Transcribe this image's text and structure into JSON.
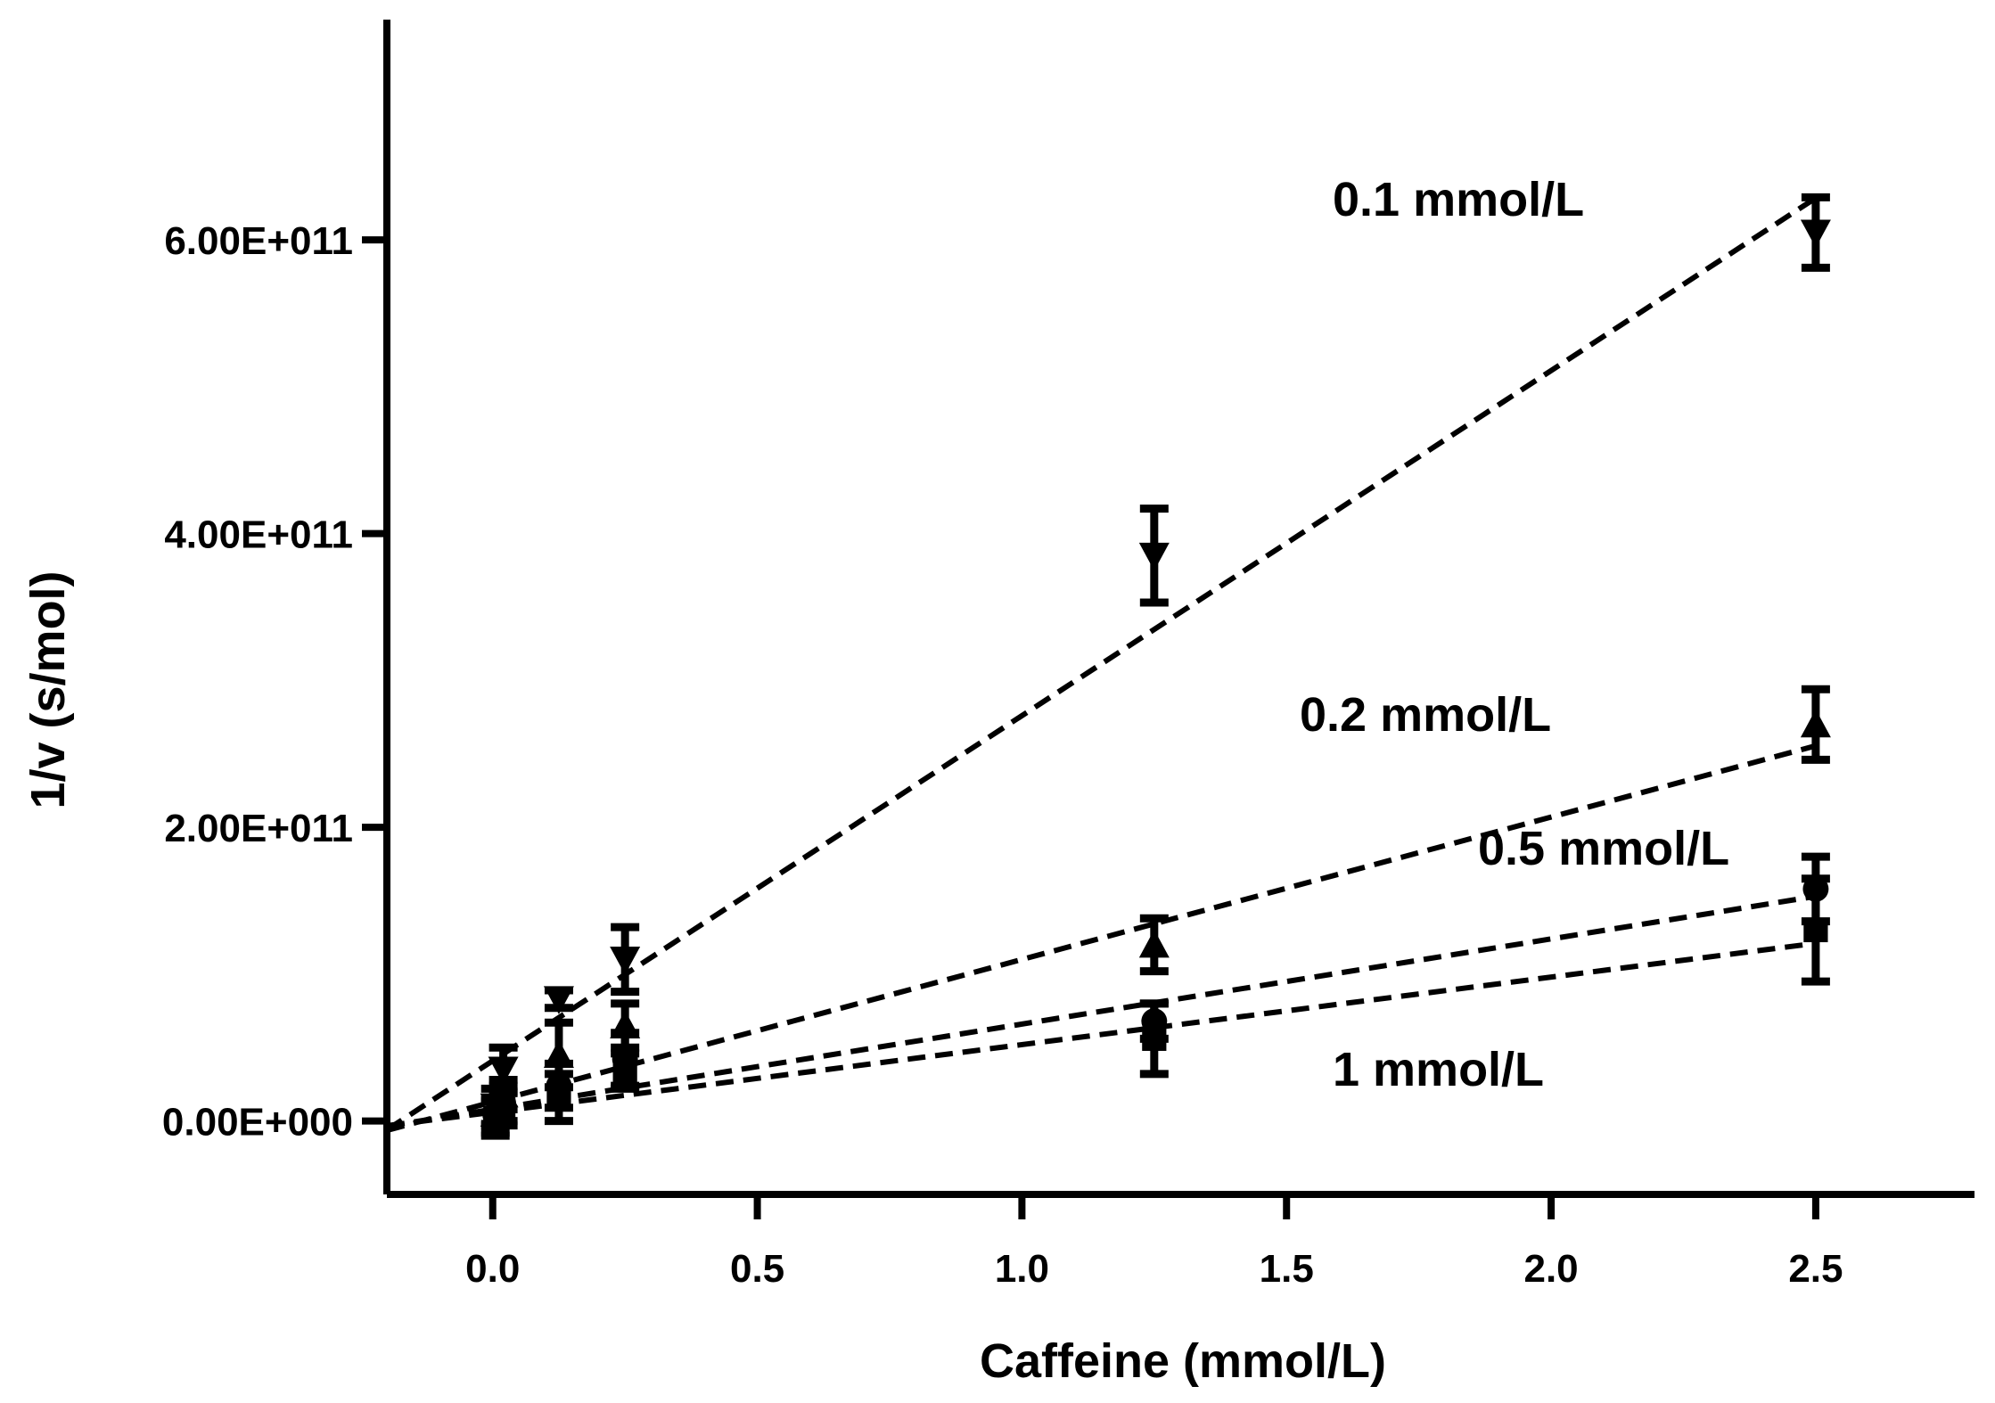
{
  "chart_data": {
    "type": "scatter",
    "title": "",
    "xlabel": "Caffeine (mmol/L)",
    "ylabel": "1/v (s/mol)",
    "xlim": [
      -0.2,
      2.8
    ],
    "ylim": [
      -50000000000.0,
      750000000000.0
    ],
    "xticks": [
      0,
      0.5,
      1,
      1.5,
      2,
      2.5
    ],
    "xtick_labels": [
      "0.0",
      "0.5",
      "1.0",
      "1.5",
      "2.0",
      "2.5"
    ],
    "yticks": [
      0,
      200000000000.0,
      400000000000.0,
      600000000000.0
    ],
    "ytick_labels": [
      "0.00E+000",
      "2.00E+011",
      "4.00E+011",
      "6.00E+011"
    ],
    "grid": false,
    "series": [
      {
        "name": "0.1 mmol/L",
        "label": "0.1 mmol/L",
        "marker": "triangle-down",
        "x": [
          0.005,
          0.02,
          0.125,
          0.25,
          1.25,
          2.5
        ],
        "y": [
          10000000000.0,
          35000000000.0,
          83000000000.0,
          110000000000.0,
          385000000000.0,
          605000000000.0
        ],
        "err": [
          12000000000.0,
          15000000000.0,
          6000000000.0,
          22000000000.0,
          32000000000.0,
          24000000000.0
        ],
        "fit": {
          "slope": 235000000000.0,
          "intercept": 41000000000.0
        }
      },
      {
        "name": "0.2 mmol/L",
        "label": "0.2 mmol/L",
        "marker": "triangle-up",
        "x": [
          0.005,
          0.02,
          0.125,
          0.25,
          1.25,
          2.5
        ],
        "y": [
          5000000000.0,
          18000000000.0,
          45000000000.0,
          65000000000.0,
          120000000000.0,
          270000000000.0
        ],
        "err": [
          8000000000.0,
          10000000000.0,
          22000000000.0,
          15000000000.0,
          18000000000.0,
          24000000000.0
        ],
        "fit": {
          "slope": 97000000000.0,
          "intercept": 13000000000.0
        }
      },
      {
        "name": "0.5 mmol/L",
        "label": "0.5 mmol/L",
        "marker": "circle",
        "x": [
          0.005,
          0.02,
          0.125,
          0.25,
          1.25,
          2.5
        ],
        "y": [
          4000000000.0,
          12000000000.0,
          24000000000.0,
          42000000000.0,
          68000000000.0,
          158000000000.0
        ],
        "err": [
          12000000000.0,
          12000000000.0,
          15000000000.0,
          18000000000.0,
          12000000000.0,
          22000000000.0
        ],
        "fit": {
          "slope": 58000000000.0,
          "intercept": 8000000000.0
        }
      },
      {
        "name": "1 mmol/L",
        "label": "1 mmol/L",
        "marker": "square",
        "x": [
          0.005,
          0.02,
          0.125,
          0.25,
          1.25,
          2.5
        ],
        "y": [
          2000000000.0,
          8000000000.0,
          16000000000.0,
          34000000000.0,
          56000000000.0,
          130000000000.0
        ],
        "err": [
          12000000000.0,
          11000000000.0,
          16000000000.0,
          12000000000.0,
          24000000000.0,
          35000000000.0
        ],
        "fit": {
          "slope": 46000000000.0,
          "intercept": 6000000000.0
        }
      }
    ]
  }
}
